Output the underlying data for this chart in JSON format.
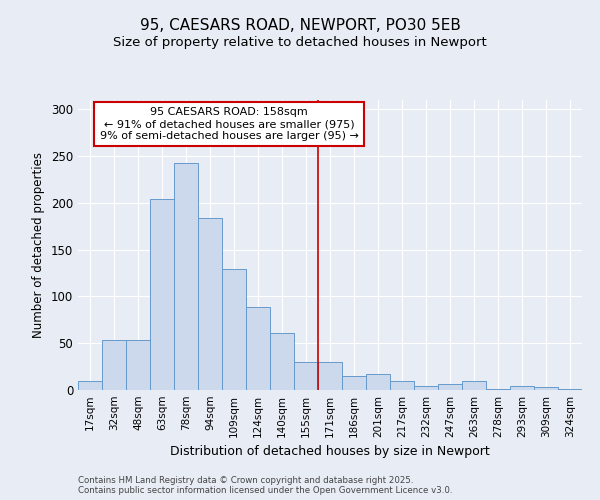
{
  "title1": "95, CAESARS ROAD, NEWPORT, PO30 5EB",
  "title2": "Size of property relative to detached houses in Newport",
  "xlabel": "Distribution of detached houses by size in Newport",
  "ylabel": "Number of detached properties",
  "bar_labels": [
    "17sqm",
    "32sqm",
    "48sqm",
    "63sqm",
    "78sqm",
    "94sqm",
    "109sqm",
    "124sqm",
    "140sqm",
    "155sqm",
    "171sqm",
    "186sqm",
    "201sqm",
    "217sqm",
    "232sqm",
    "247sqm",
    "263sqm",
    "278sqm",
    "293sqm",
    "309sqm",
    "324sqm"
  ],
  "bar_values": [
    10,
    53,
    53,
    204,
    243,
    184,
    129,
    89,
    61,
    30,
    30,
    15,
    17,
    10,
    4,
    6,
    10,
    1,
    4,
    3,
    1
  ],
  "bar_color": "#ccd9ec",
  "bar_edge_color": "#6699cc",
  "bg_color": "#e8edf5",
  "grid_color": "#ffffff",
  "annotation_text": "95 CAESARS ROAD: 158sqm\n← 91% of detached houses are smaller (975)\n9% of semi-detached houses are larger (95) →",
  "vline_x": 9.5,
  "vline_color": "#cc0000",
  "annotation_box_edge": "#cc0000",
  "footer_text": "Contains HM Land Registry data © Crown copyright and database right 2025.\nContains public sector information licensed under the Open Government Licence v3.0.",
  "ylim": [
    0,
    310
  ],
  "yticks": [
    0,
    50,
    100,
    150,
    200,
    250,
    300
  ],
  "title1_fontsize": 11,
  "title2_fontsize": 9.5
}
